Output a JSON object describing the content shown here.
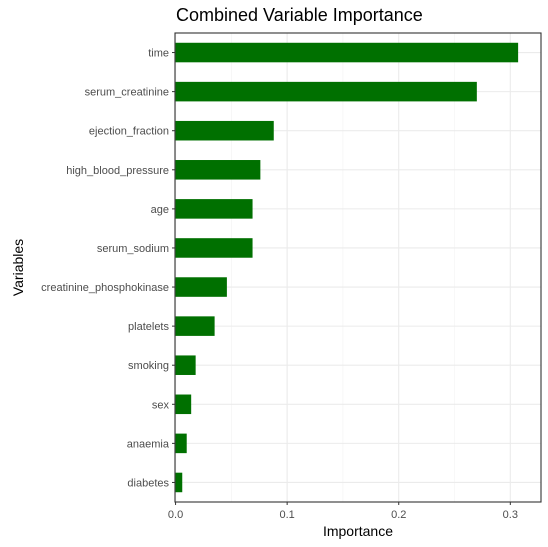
{
  "chart_data": {
    "type": "bar",
    "orientation": "horizontal",
    "title": "Combined Variable Importance",
    "xlabel": "Importance",
    "ylabel": "Variables",
    "categories": [
      "time",
      "serum_creatinine",
      "ejection_fraction",
      "high_blood_pressure",
      "age",
      "serum_sodium",
      "creatinine_phosphokinase",
      "platelets",
      "smoking",
      "sex",
      "anaemia",
      "diabetes"
    ],
    "values": [
      0.307,
      0.27,
      0.088,
      0.076,
      0.069,
      0.069,
      0.046,
      0.035,
      0.018,
      0.014,
      0.01,
      0.006
    ],
    "xlim": [
      -0.0005,
      0.3275
    ],
    "xticks": [
      0,
      0.1,
      0.2,
      0.3
    ],
    "xtick_labels": [
      "0.0",
      "0.1",
      "0.2",
      "0.3"
    ],
    "bar_color": "#007000",
    "grid": true,
    "theme": "bw"
  }
}
